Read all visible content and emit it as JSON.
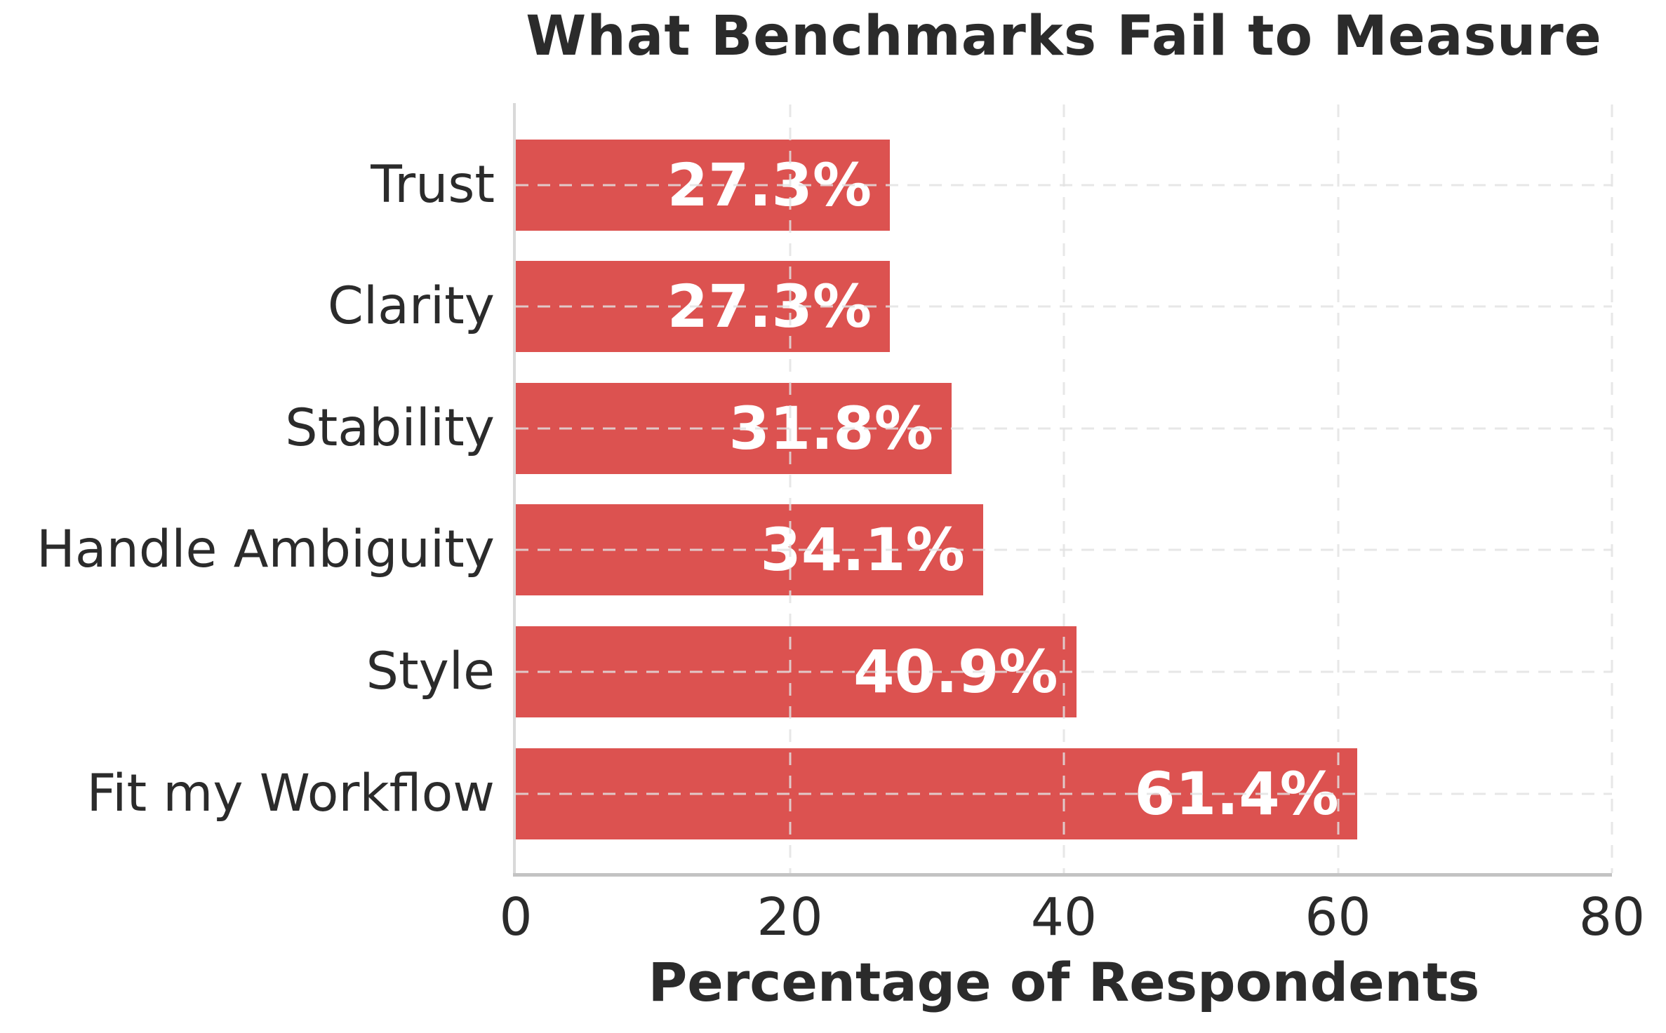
{
  "chart_data": {
    "type": "bar",
    "orientation": "horizontal",
    "title": "What Benchmarks Fail to Measure",
    "xlabel": "Percentage of Respondents",
    "ylabel": "",
    "categories": [
      "Trust",
      "Clarity",
      "Stability",
      "Handle Ambiguity",
      "Style",
      "Fit my Workflow"
    ],
    "values": [
      27.3,
      27.3,
      31.8,
      34.1,
      40.9,
      61.4
    ],
    "value_labels": [
      "27.3%",
      "27.3%",
      "31.8%",
      "34.1%",
      "40.9%",
      "61.4%"
    ],
    "x_ticks": [
      0,
      20,
      40,
      60,
      80
    ],
    "x_tick_labels": [
      "0",
      "20",
      "40",
      "60",
      "80"
    ],
    "xlim": [
      0,
      80
    ],
    "legend": "none",
    "grid": "dashed vertical and horizontal gridlines, drawn over bars",
    "colors": {
      "bar": "#dc5250",
      "text": "#2b2b2b",
      "value_label": "#ffffff",
      "gridline": "#e2e2e2",
      "spine_left": "#d9d9d9",
      "spine_bottom": "#c3c3c3",
      "background": "#ffffff"
    }
  }
}
